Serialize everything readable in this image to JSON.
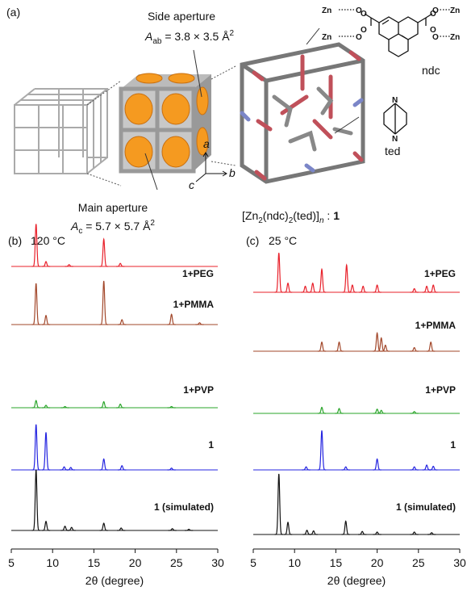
{
  "panel_a": {
    "label": "(a)",
    "side_aperture": {
      "title": "Side aperture",
      "symbol": "A",
      "subscript": "ab",
      "expression": " = 3.8 × 3.5 Å",
      "superscript": "2"
    },
    "main_aperture": {
      "title": "Main aperture",
      "symbol": "A",
      "subscript": "c",
      "expression": " = 5.7 × 5.7 Å",
      "superscript": "2"
    },
    "axes": [
      "a",
      "b",
      "c"
    ],
    "formula": [
      "[Zn",
      "2",
      "(ndc)",
      "2",
      "(ted)]",
      "n",
      " : ",
      "1"
    ],
    "ndc": {
      "label": "ndc",
      "zn": [
        "Zn",
        "Zn",
        "Zn",
        "Zn"
      ],
      "o": [
        "O",
        "O",
        "O",
        "O",
        "O",
        "O",
        "O",
        "O"
      ]
    },
    "ted": {
      "label": "ted",
      "atoms": [
        "N",
        "N"
      ]
    }
  },
  "chart_data": [
    {
      "type": "line",
      "panel": "(b)",
      "title": "120 °C",
      "xlabel": "2θ (degree)",
      "xlim": [
        5,
        30
      ],
      "xticks": [
        5,
        10,
        15,
        20,
        25,
        30
      ],
      "series": [
        {
          "name": "1+PEG",
          "color": "#e8202a",
          "peaks": [
            [
              8.0,
              0.7
            ],
            [
              9.2,
              0.08
            ],
            [
              12.0,
              0.03
            ],
            [
              16.2,
              0.45
            ],
            [
              18.2,
              0.05
            ]
          ]
        },
        {
          "name": "1+PMMA",
          "color": "#a2472a",
          "peaks": [
            [
              8.0,
              0.68
            ],
            [
              9.2,
              0.15
            ],
            [
              16.2,
              0.72
            ],
            [
              18.4,
              0.08
            ],
            [
              24.4,
              0.17
            ],
            [
              27.8,
              0.03
            ]
          ]
        },
        {
          "name": "1+PVP",
          "color": "#2aa52a",
          "peaks": [
            [
              8.0,
              0.12
            ],
            [
              9.2,
              0.04
            ],
            [
              11.5,
              0.02
            ],
            [
              16.2,
              0.1
            ],
            [
              18.2,
              0.06
            ],
            [
              24.4,
              0.02
            ]
          ]
        },
        {
          "name": "1",
          "color": "#2424e0",
          "peaks": [
            [
              8.0,
              0.75
            ],
            [
              9.2,
              0.62
            ],
            [
              11.4,
              0.05
            ],
            [
              12.2,
              0.04
            ],
            [
              16.2,
              0.18
            ],
            [
              18.4,
              0.07
            ],
            [
              24.4,
              0.03
            ]
          ]
        },
        {
          "name": "1 (simulated)",
          "color": "#111111",
          "peaks": [
            [
              8.0,
              1.0
            ],
            [
              9.2,
              0.15
            ],
            [
              11.5,
              0.07
            ],
            [
              12.3,
              0.05
            ],
            [
              16.2,
              0.12
            ],
            [
              18.3,
              0.04
            ],
            [
              24.5,
              0.03
            ],
            [
              26.5,
              0.02
            ]
          ]
        }
      ]
    },
    {
      "type": "line",
      "panel": "(c)",
      "title": "25 °C",
      "xlabel": "2θ (degree)",
      "xlim": [
        5,
        30
      ],
      "xticks": [
        5,
        10,
        15,
        20,
        25,
        30
      ],
      "series": [
        {
          "name": "1+PEG",
          "color": "#e8202a",
          "peaks": [
            [
              8.1,
              0.65
            ],
            [
              9.2,
              0.15
            ],
            [
              11.3,
              0.1
            ],
            [
              12.2,
              0.15
            ],
            [
              13.3,
              0.38
            ],
            [
              16.3,
              0.45
            ],
            [
              17.0,
              0.12
            ],
            [
              18.3,
              0.1
            ],
            [
              20.0,
              0.12
            ],
            [
              24.5,
              0.06
            ],
            [
              26.0,
              0.1
            ],
            [
              26.8,
              0.12
            ]
          ]
        },
        {
          "name": "1+PMMA",
          "color": "#a2472a",
          "peaks": [
            [
              13.3,
              0.15
            ],
            [
              15.4,
              0.15
            ],
            [
              20.0,
              0.3
            ],
            [
              20.5,
              0.22
            ],
            [
              21.0,
              0.1
            ],
            [
              24.5,
              0.06
            ],
            [
              26.5,
              0.15
            ]
          ]
        },
        {
          "name": "1+PVP",
          "color": "#2aa52a",
          "peaks": [
            [
              13.3,
              0.1
            ],
            [
              15.4,
              0.08
            ],
            [
              20.0,
              0.07
            ],
            [
              20.5,
              0.05
            ],
            [
              24.5,
              0.03
            ]
          ]
        },
        {
          "name": "1",
          "color": "#2424e0",
          "peaks": [
            [
              11.4,
              0.05
            ],
            [
              13.3,
              0.65
            ],
            [
              16.2,
              0.05
            ],
            [
              20.0,
              0.18
            ],
            [
              24.5,
              0.05
            ],
            [
              26.0,
              0.08
            ],
            [
              26.8,
              0.06
            ]
          ]
        },
        {
          "name": "1 (simulated)",
          "color": "#111111",
          "peaks": [
            [
              8.1,
              1.0
            ],
            [
              9.2,
              0.2
            ],
            [
              11.5,
              0.07
            ],
            [
              12.3,
              0.06
            ],
            [
              16.2,
              0.22
            ],
            [
              18.2,
              0.05
            ],
            [
              20.0,
              0.04
            ],
            [
              24.5,
              0.04
            ],
            [
              26.6,
              0.03
            ]
          ]
        }
      ]
    }
  ]
}
